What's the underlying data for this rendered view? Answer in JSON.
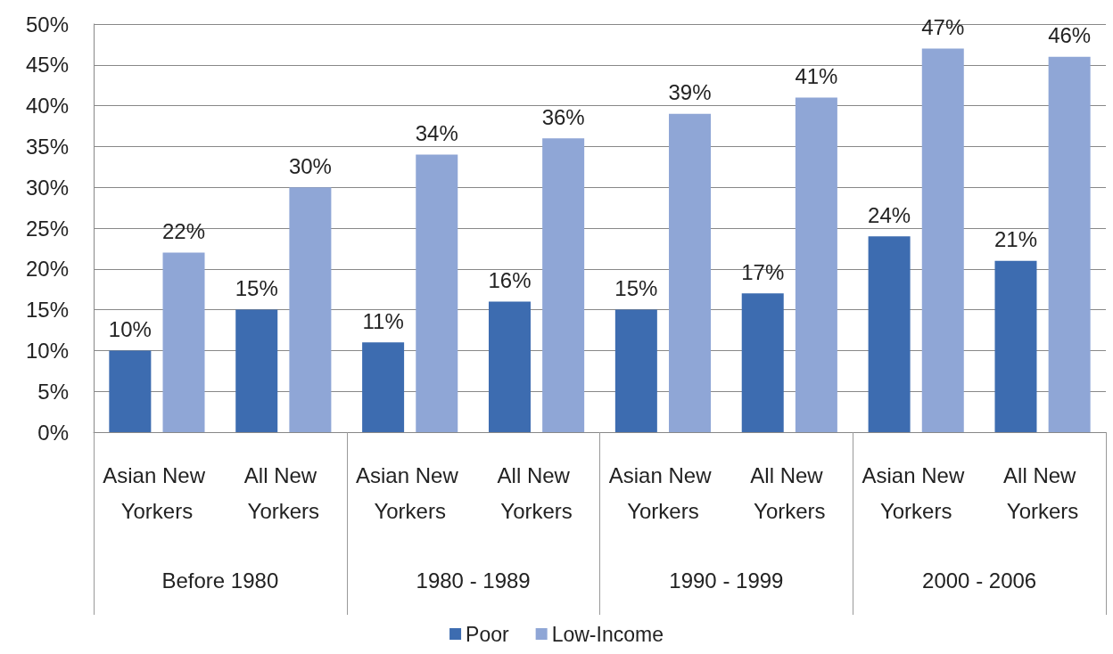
{
  "chart_data": {
    "type": "bar",
    "categories": [
      "Asian New Yorkers",
      "All New Yorkers",
      "Asian New Yorkers",
      "All New Yorkers",
      "Asian New Yorkers",
      "All New Yorkers",
      "Asian New Yorkers",
      "All New Yorkers"
    ],
    "series": [
      {
        "name": "Poor",
        "color": "#3d6cb0",
        "values": [
          10,
          15,
          11,
          16,
          15,
          17,
          24,
          21
        ],
        "value_labels": [
          "10%",
          "15%",
          "11%",
          "16%",
          "15%",
          "17%",
          "24%",
          "21%"
        ]
      },
      {
        "name": "Low-Income",
        "color": "#8fa6d6",
        "values": [
          22,
          30,
          34,
          36,
          39,
          41,
          47,
          46
        ],
        "value_labels": [
          "22%",
          "30%",
          "34%",
          "36%",
          "39%",
          "41%",
          "47%",
          "46%"
        ]
      }
    ],
    "ylim": [
      0,
      50
    ],
    "yticks": [
      {
        "value": 0,
        "label": "0%"
      },
      {
        "value": 5,
        "label": "5%"
      },
      {
        "value": 10,
        "label": "10%"
      },
      {
        "value": 15,
        "label": "15%"
      },
      {
        "value": 20,
        "label": "20%"
      },
      {
        "value": 25,
        "label": "25%"
      },
      {
        "value": 30,
        "label": "30%"
      },
      {
        "value": 35,
        "label": "35%"
      },
      {
        "value": 40,
        "label": "40%"
      },
      {
        "value": 45,
        "label": "45%"
      },
      {
        "value": 50,
        "label": "50%"
      }
    ],
    "annotations": [
      "Before 1980",
      "1980 - 1989",
      "1990 - 1999",
      "2000 - 2006"
    ],
    "grid": "y",
    "legend": "bottom"
  }
}
